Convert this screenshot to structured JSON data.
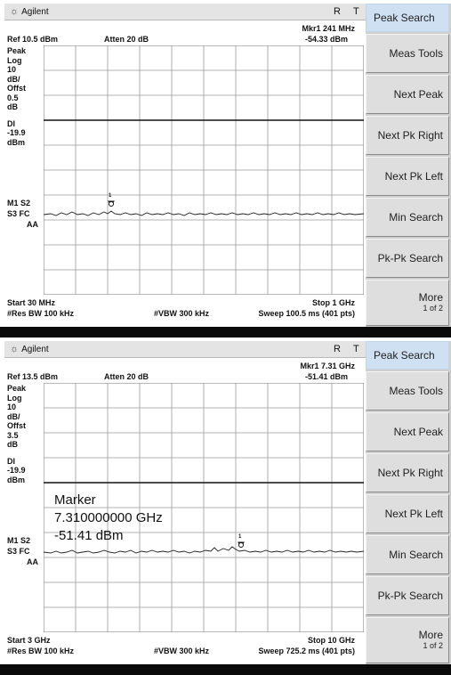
{
  "screens": [
    {
      "brand": "Agilent",
      "indicator_r": "R",
      "indicator_t": "T",
      "mkr_label": "Mkr1  241 MHz",
      "mkr_value": "-54.33 dBm",
      "ref": "Ref 10.5 dBm",
      "atten": "Atten 20 dB",
      "left_labels": [
        "Peak",
        "Log",
        "10",
        "dB/",
        "Offst",
        "0.5",
        "dB",
        "DI",
        "-19.9",
        "dBm"
      ],
      "mode_labels": [
        "M1  S2",
        "S3  FC",
        "AA"
      ],
      "start": "Start 30 MHz",
      "stop": "Stop 1 GHz",
      "res_bw": "#Res BW 100 kHz",
      "vbw": "#VBW 300 kHz",
      "sweep": "Sweep 100.5 ms (401 pts)",
      "marker_box": null,
      "softkeys": [
        "Peak Search",
        "Meas Tools",
        "Next Peak",
        "Next Pk Right",
        "Next Pk Left",
        "Min Search",
        "Pk-Pk Search",
        "More",
        "1 of 2"
      ]
    },
    {
      "brand": "Agilent",
      "indicator_r": "R",
      "indicator_t": "T",
      "mkr_label": "Mkr1  7.31 GHz",
      "mkr_value": "-51.41 dBm",
      "ref": "Ref 13.5 dBm",
      "atten": "Atten 20 dB",
      "left_labels": [
        "Peak",
        "Log",
        "10",
        "dB/",
        "Offst",
        "3.5",
        "dB",
        "DI",
        "-19.9",
        "dBm"
      ],
      "mode_labels": [
        "M1  S2",
        "S3  FC",
        "AA"
      ],
      "start": "Start 3 GHz",
      "stop": "Stop 10 GHz",
      "res_bw": "#Res BW 100 kHz",
      "vbw": "#VBW 300 kHz",
      "sweep": "Sweep 725.2 ms (401 pts)",
      "marker_box": {
        "line1": "Marker",
        "line2": "7.310000000 GHz",
        "line3": "-51.41 dBm"
      },
      "softkeys": [
        "Peak Search",
        "Meas Tools",
        "Next Peak",
        "Next Pk Right",
        "Next Pk Left",
        "Min Search",
        "Pk-Pk Search",
        "More",
        "1 of 2"
      ]
    }
  ]
}
